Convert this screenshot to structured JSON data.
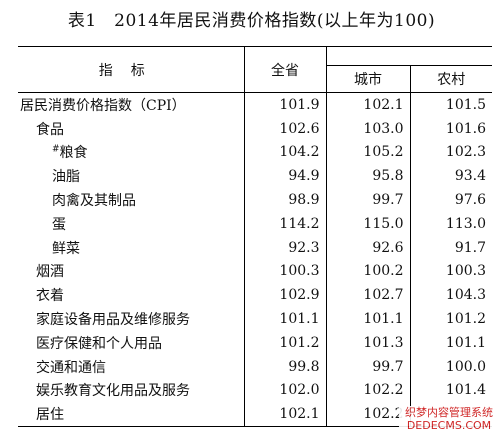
{
  "title": "表1　2014年居民消费价格指数(以上年为100)",
  "headers": {
    "name": "指标",
    "province": "全省",
    "city": "城市",
    "rural": "农村"
  },
  "rows": [
    {
      "name": "居民消费价格指数（CPI）",
      "province": "101.9",
      "city": "102.1",
      "rural": "101.5",
      "level": 0
    },
    {
      "name": "食品",
      "province": "102.6",
      "city": "103.0",
      "rural": "101.6",
      "level": 1
    },
    {
      "name": "粮食",
      "mark": "#",
      "province": "104.2",
      "city": "105.2",
      "rural": "102.3",
      "level": 2
    },
    {
      "name": "油脂",
      "province": "94.9",
      "city": "95.8",
      "rural": "93.4",
      "level": 2
    },
    {
      "name": "肉禽及其制品",
      "province": "98.9",
      "city": "99.7",
      "rural": "97.6",
      "level": 2
    },
    {
      "name": "蛋",
      "province": "114.2",
      "city": "115.0",
      "rural": "113.0",
      "level": 2
    },
    {
      "name": "鲜菜",
      "province": "92.3",
      "city": "92.6",
      "rural": "91.7",
      "level": 2
    },
    {
      "name": "烟酒",
      "province": "100.3",
      "city": "100.2",
      "rural": "100.3",
      "level": 1
    },
    {
      "name": "衣着",
      "province": "102.9",
      "city": "102.7",
      "rural": "104.3",
      "level": 1
    },
    {
      "name": "家庭设备用品及维修服务",
      "province": "101.1",
      "city": "101.1",
      "rural": "101.2",
      "level": 1
    },
    {
      "name": "医疗保健和个人用品",
      "province": "101.2",
      "city": "101.3",
      "rural": "101.1",
      "level": 1
    },
    {
      "name": "交通和通信",
      "province": "99.8",
      "city": "99.7",
      "rural": "100.0",
      "level": 1
    },
    {
      "name": "娱乐教育文化用品及服务",
      "province": "102.0",
      "city": "102.2",
      "rural": "101.4",
      "level": 1
    },
    {
      "name": "居住",
      "province": "102.1",
      "city": "102.2",
      "rural": "",
      "level": 1
    }
  ],
  "watermark": {
    "line1": "织梦内容管理系统",
    "line2": "DEDECMS.COM"
  }
}
